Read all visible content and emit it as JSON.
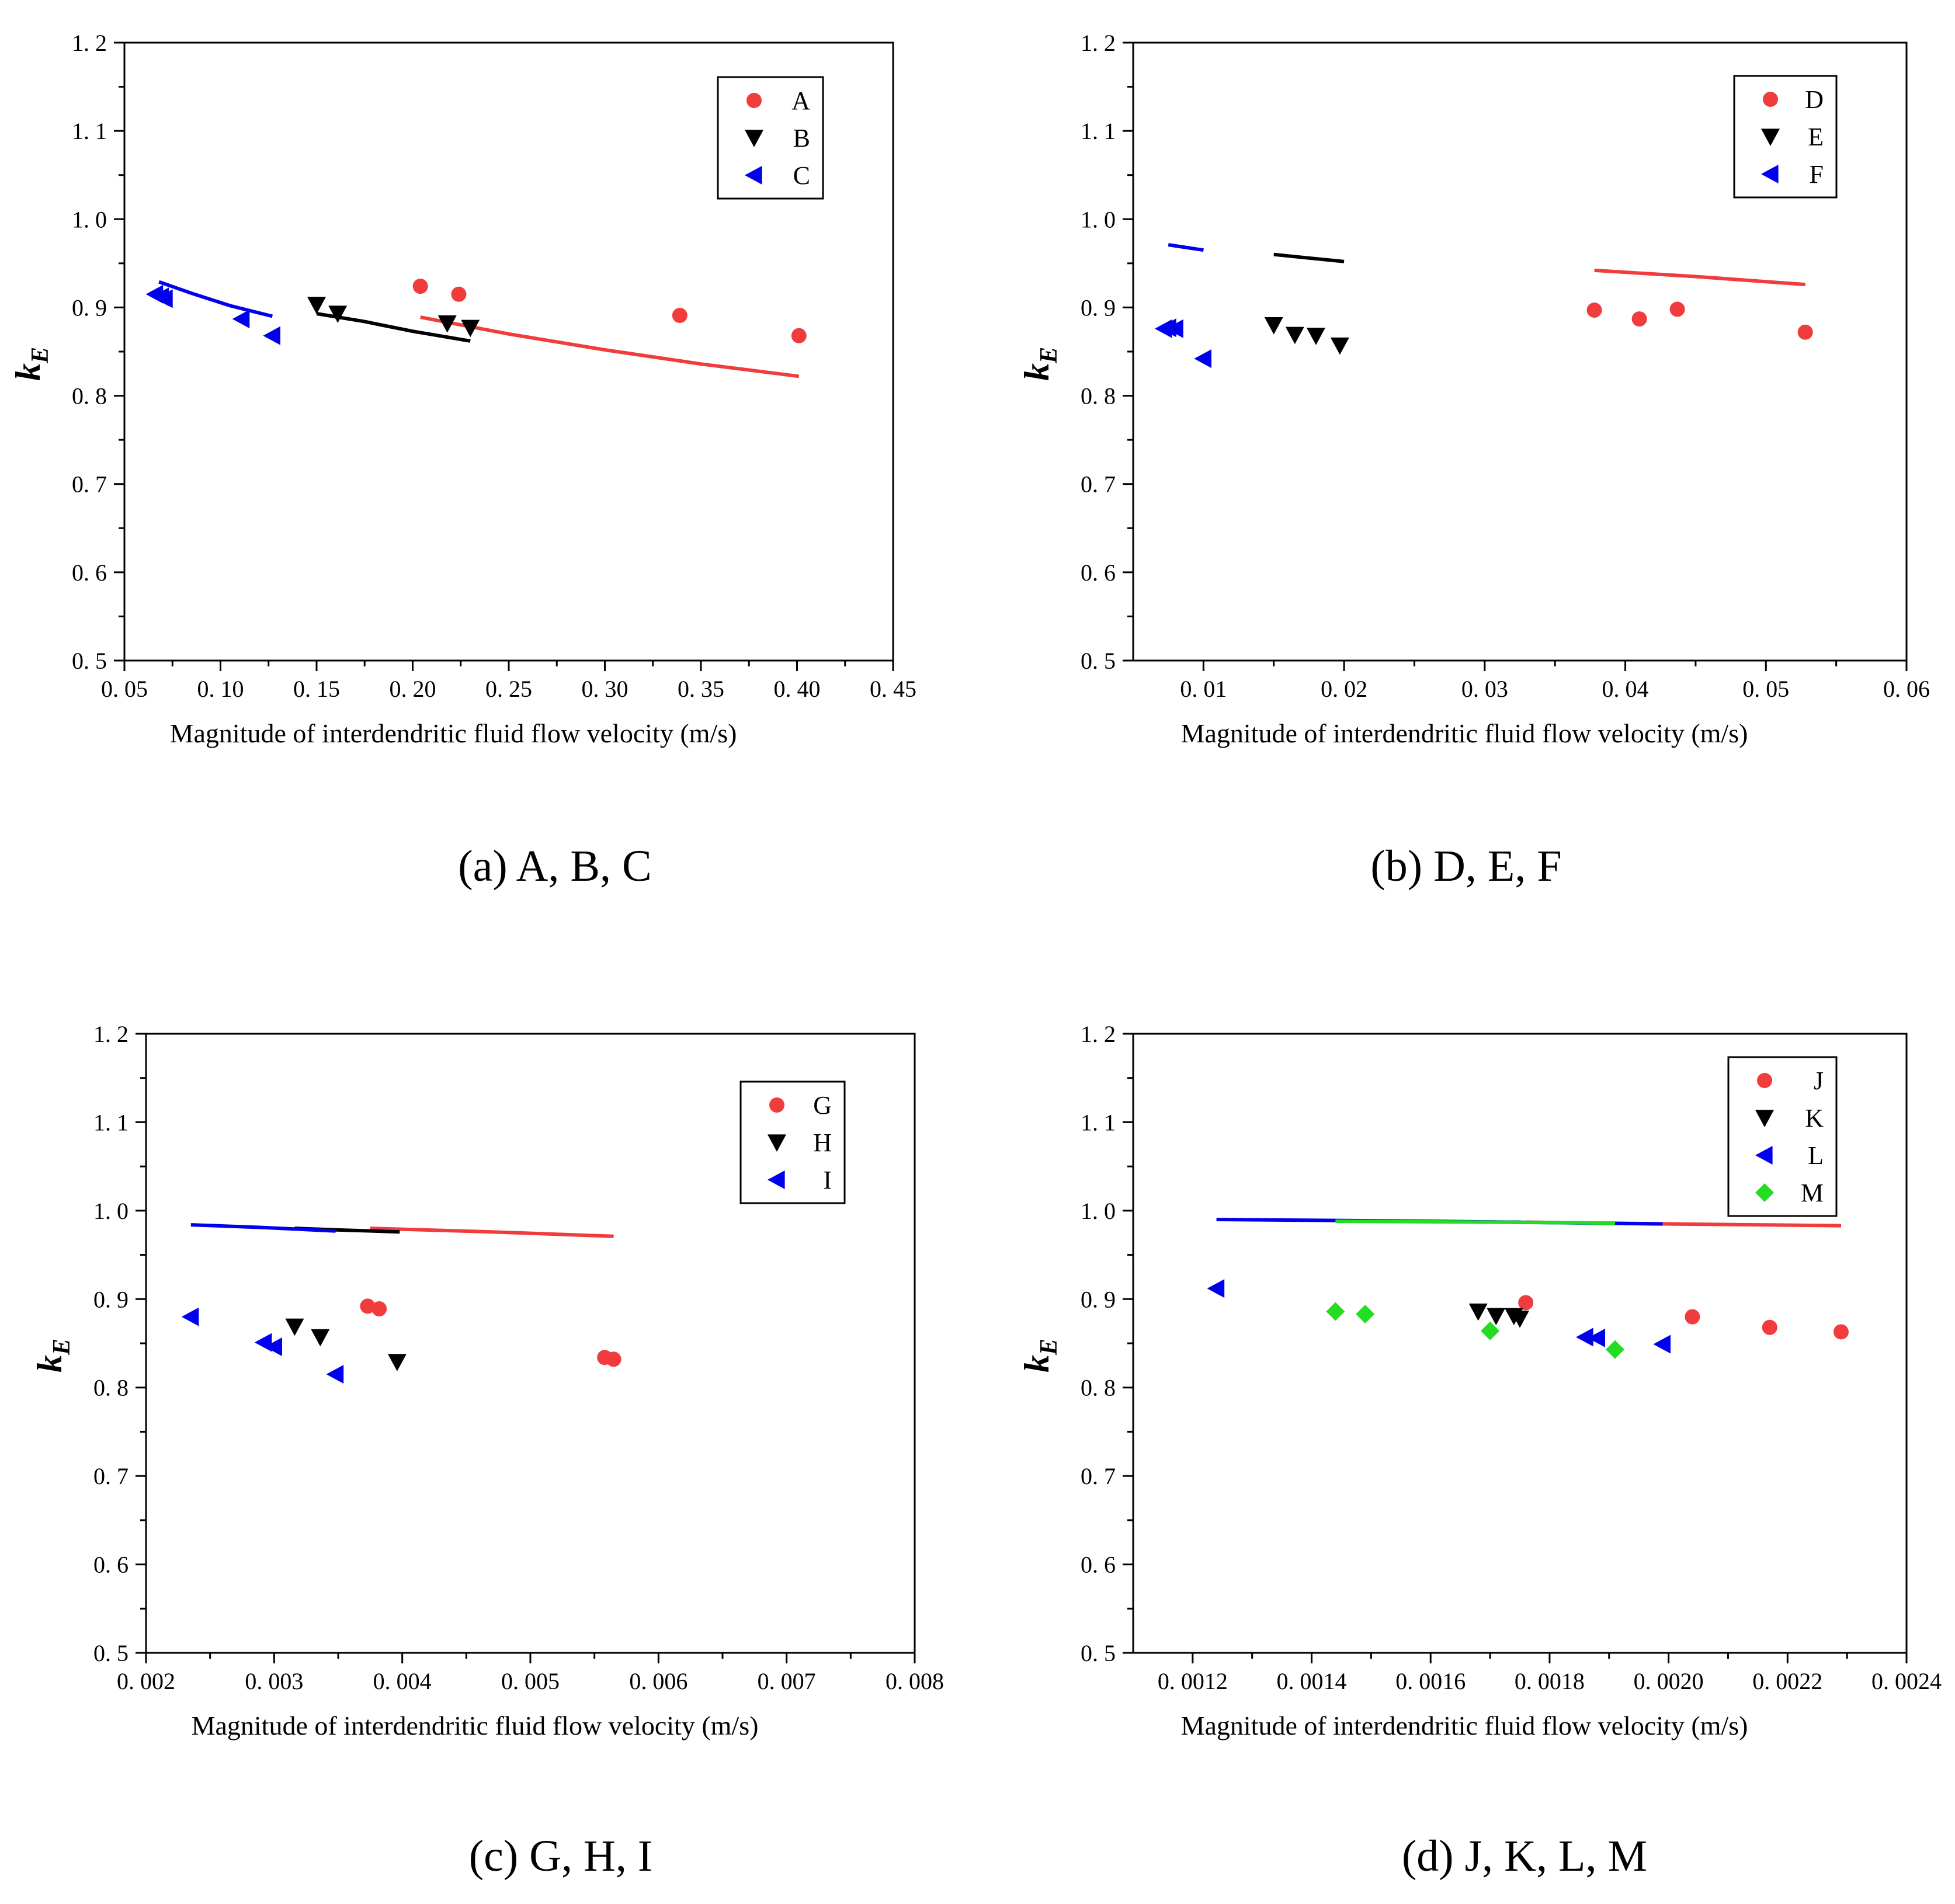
{
  "chart_data": [
    {
      "id": "a",
      "type": "scatter",
      "caption": "(a) A, B, C",
      "xlabel": "Magnitude of interdendritic fluid flow velocity (m/s)",
      "ylabel_main": "k",
      "ylabel_sub": "E",
      "xlim": [
        0.05,
        0.45
      ],
      "ylim": [
        0.5,
        1.2
      ],
      "xticks": [
        0.05,
        0.1,
        0.15,
        0.2,
        0.25,
        0.3,
        0.35,
        0.4,
        0.45
      ],
      "xtick_labels": [
        "0. 05",
        "0. 10",
        "0. 15",
        "0. 20",
        "0. 25",
        "0. 30",
        "0. 35",
        "0. 40",
        "0. 45"
      ],
      "yticks": [
        0.5,
        0.6,
        0.7,
        0.8,
        0.9,
        1.0,
        1.1,
        1.2
      ],
      "ytick_labels": [
        "0. 5",
        "0. 6",
        "0. 7",
        "0. 8",
        "0. 9",
        "1. 0",
        "1. 1",
        "1. 2"
      ],
      "legend_position": "top-right",
      "series": [
        {
          "name": "A",
          "marker": "circle",
          "color": "#f03c3c",
          "points": [
            [
              0.204,
              0.924
            ],
            [
              0.224,
              0.915
            ],
            [
              0.339,
              0.891
            ],
            [
              0.401,
              0.868
            ]
          ],
          "curve": [
            [
              0.204,
              0.889
            ],
            [
              0.25,
              0.87
            ],
            [
              0.3,
              0.852
            ],
            [
              0.35,
              0.836
            ],
            [
              0.401,
              0.822
            ]
          ]
        },
        {
          "name": "B",
          "marker": "triangle-down",
          "color": "#000000",
          "points": [
            [
              0.15,
              0.903
            ],
            [
              0.161,
              0.893
            ],
            [
              0.218,
              0.882
            ],
            [
              0.23,
              0.877
            ]
          ],
          "curve": [
            [
              0.15,
              0.893
            ],
            [
              0.175,
              0.884
            ],
            [
              0.2,
              0.873
            ],
            [
              0.23,
              0.862
            ]
          ]
        },
        {
          "name": "C",
          "marker": "triangle-left",
          "color": "#0000ee",
          "points": [
            [
              0.066,
              0.915
            ],
            [
              0.069,
              0.912
            ],
            [
              0.071,
              0.91
            ],
            [
              0.111,
              0.887
            ],
            [
              0.127,
              0.868
            ]
          ],
          "curve": [
            [
              0.068,
              0.929
            ],
            [
              0.085,
              0.916
            ],
            [
              0.105,
              0.902
            ],
            [
              0.127,
              0.89
            ]
          ]
        }
      ]
    },
    {
      "id": "b",
      "type": "scatter",
      "caption": "(b) D, E, F",
      "xlabel": "Magnitude of interdendritic fluid flow velocity (m/s)",
      "ylabel_main": "k",
      "ylabel_sub": "E",
      "xlim": [
        0.005,
        0.06
      ],
      "ylim": [
        0.5,
        1.2
      ],
      "xticks": [
        0.01,
        0.02,
        0.03,
        0.04,
        0.05,
        0.06
      ],
      "xtick_labels": [
        "0. 01",
        "0. 02",
        "0. 03",
        "0. 04",
        "0. 05",
        "0. 06"
      ],
      "yticks": [
        0.5,
        0.6,
        0.7,
        0.8,
        0.9,
        1.0,
        1.1,
        1.2
      ],
      "ytick_labels": [
        "0. 5",
        "0. 6",
        "0. 7",
        "0. 8",
        "0. 9",
        "1. 0",
        "1. 1",
        "1. 2"
      ],
      "legend_position": "top-right",
      "series": [
        {
          "name": "D",
          "marker": "circle",
          "color": "#f03c3c",
          "points": [
            [
              0.0378,
              0.897
            ],
            [
              0.041,
              0.887
            ],
            [
              0.0437,
              0.898
            ],
            [
              0.0528,
              0.872
            ]
          ],
          "curve": [
            [
              0.0378,
              0.942
            ],
            [
              0.045,
              0.935
            ],
            [
              0.0528,
              0.926
            ]
          ]
        },
        {
          "name": "E",
          "marker": "triangle-down",
          "color": "#000000",
          "points": [
            [
              0.015,
              0.88
            ],
            [
              0.0165,
              0.869
            ],
            [
              0.018,
              0.868
            ],
            [
              0.0197,
              0.857
            ]
          ],
          "curve": [
            [
              0.015,
              0.96
            ],
            [
              0.0175,
              0.956
            ],
            [
              0.02,
              0.952
            ]
          ]
        },
        {
          "name": "F",
          "marker": "triangle-left",
          "color": "#0000ee",
          "points": [
            [
              0.0072,
              0.876
            ],
            [
              0.0075,
              0.877
            ],
            [
              0.008,
              0.876
            ],
            [
              0.01,
              0.842
            ]
          ],
          "curve": [
            [
              0.0075,
              0.971
            ],
            [
              0.01,
              0.965
            ]
          ]
        }
      ]
    },
    {
      "id": "c",
      "type": "scatter",
      "caption": "(c) G, H, I",
      "xlabel": "Magnitude of interdendritic fluid flow velocity (m/s)",
      "ylabel_main": "k",
      "ylabel_sub": "E",
      "xlim": [
        0.002,
        0.008
      ],
      "ylim": [
        0.5,
        1.2
      ],
      "xticks": [
        0.002,
        0.003,
        0.004,
        0.005,
        0.006,
        0.007,
        0.008
      ],
      "xtick_labels": [
        "0. 002",
        "0. 003",
        "0. 004",
        "0. 005",
        "0. 006",
        "0. 007",
        "0. 008"
      ],
      "yticks": [
        0.5,
        0.6,
        0.7,
        0.8,
        0.9,
        1.0,
        1.1,
        1.2
      ],
      "ytick_labels": [
        "0. 5",
        "0. 6",
        "0. 7",
        "0. 8",
        "0. 9",
        "1. 0",
        "1. 1",
        "1. 2"
      ],
      "legend_position": "top-right",
      "series": [
        {
          "name": "G",
          "marker": "circle",
          "color": "#f03c3c",
          "points": [
            [
              0.00373,
              0.892
            ],
            [
              0.00382,
              0.889
            ],
            [
              0.00558,
              0.834
            ],
            [
              0.00565,
              0.832
            ]
          ],
          "curve": [
            [
              0.00375,
              0.98
            ],
            [
              0.0047,
              0.976
            ],
            [
              0.00565,
              0.971
            ]
          ]
        },
        {
          "name": "H",
          "marker": "triangle-down",
          "color": "#000000",
          "points": [
            [
              0.00316,
              0.869
            ],
            [
              0.00336,
              0.857
            ],
            [
              0.00396,
              0.829
            ]
          ],
          "curve": [
            [
              0.00316,
              0.98
            ],
            [
              0.00355,
              0.978
            ],
            [
              0.00398,
              0.976
            ]
          ]
        },
        {
          "name": "I",
          "marker": "triangle-left",
          "color": "#0000ee",
          "points": [
            [
              0.00235,
              0.88
            ],
            [
              0.00292,
              0.851
            ],
            [
              0.003,
              0.846
            ],
            [
              0.00348,
              0.815
            ]
          ],
          "curve": [
            [
              0.00235,
              0.984
            ],
            [
              0.0029,
              0.981
            ],
            [
              0.00348,
              0.977
            ]
          ]
        }
      ]
    },
    {
      "id": "d",
      "type": "scatter",
      "caption": "(d) J, K, L, M",
      "xlabel": "Magnitude of interdendritic fluid flow velocity (m/s)",
      "ylabel_main": "k",
      "ylabel_sub": "E",
      "xlim": [
        0.0011,
        0.0024
      ],
      "ylim": [
        0.5,
        1.2
      ],
      "xticks": [
        0.0012,
        0.0014,
        0.0016,
        0.0018,
        0.002,
        0.0022,
        0.0024
      ],
      "xtick_labels": [
        "0. 0012",
        "0. 0014",
        "0. 0016",
        "0. 0018",
        "0. 0020",
        "0. 0022",
        "0. 0024"
      ],
      "yticks": [
        0.5,
        0.6,
        0.7,
        0.8,
        0.9,
        1.0,
        1.1,
        1.2
      ],
      "ytick_labels": [
        "0. 5",
        "0. 6",
        "0. 7",
        "0. 8",
        "0. 9",
        "1. 0",
        "1. 1",
        "1. 2"
      ],
      "legend_position": "top-right",
      "series": [
        {
          "name": "J",
          "marker": "circle",
          "color": "#f03c3c",
          "points": [
            [
              0.00176,
              0.896
            ],
            [
              0.00204,
              0.88
            ],
            [
              0.00217,
              0.868
            ],
            [
              0.00229,
              0.863
            ]
          ],
          "curve": [
            [
              0.00176,
              0.987
            ],
            [
              0.002,
              0.985
            ],
            [
              0.00229,
              0.983
            ]
          ]
        },
        {
          "name": "K",
          "marker": "triangle-down",
          "color": "#000000",
          "points": [
            [
              0.00168,
              0.886
            ],
            [
              0.00171,
              0.881
            ],
            [
              0.00174,
              0.881
            ],
            [
              0.00175,
              0.878
            ]
          ],
          "curve": [
            [
              0.00168,
              0.987
            ],
            [
              0.00175,
              0.987
            ]
          ]
        },
        {
          "name": "L",
          "marker": "triangle-left",
          "color": "#0000ee",
          "points": [
            [
              0.00124,
              0.912
            ],
            [
              0.00186,
              0.857
            ],
            [
              0.00188,
              0.856
            ],
            [
              0.00199,
              0.849
            ]
          ],
          "curve": [
            [
              0.00124,
              0.99
            ],
            [
              0.0016,
              0.988
            ],
            [
              0.00199,
              0.985
            ]
          ]
        },
        {
          "name": "M",
          "marker": "diamond",
          "color": "#22dd22",
          "points": [
            [
              0.00144,
              0.886
            ],
            [
              0.00149,
              0.883
            ],
            [
              0.0017,
              0.864
            ],
            [
              0.00191,
              0.843
            ]
          ],
          "curve": [
            [
              0.00144,
              0.988
            ],
            [
              0.0017,
              0.987
            ],
            [
              0.00191,
              0.986
            ]
          ]
        }
      ]
    }
  ]
}
